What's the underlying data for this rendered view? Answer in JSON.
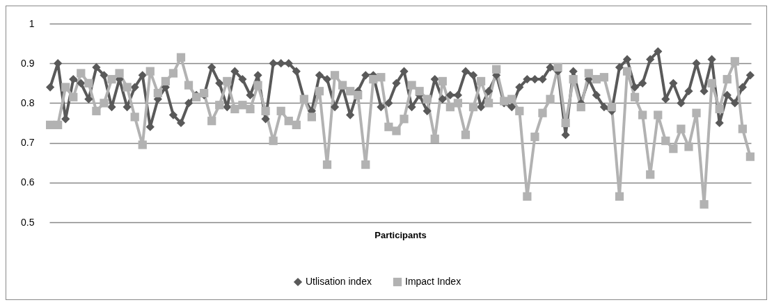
{
  "chart_data": {
    "type": "line",
    "xlabel": "Participants",
    "categories": [
      null,
      null,
      null,
      null,
      null,
      null,
      null,
      null,
      null,
      null,
      null,
      null,
      null,
      null,
      null,
      null,
      null,
      null,
      null,
      null,
      null,
      null,
      null,
      null,
      null,
      null,
      null,
      null,
      null,
      null,
      null,
      null,
      null,
      null,
      null,
      null,
      null,
      null,
      null,
      null,
      null,
      null,
      null,
      null,
      null,
      null,
      null,
      null,
      null,
      null,
      null,
      null,
      null,
      null,
      null,
      null,
      null,
      null,
      null,
      null,
      null,
      null,
      null,
      null,
      null,
      null,
      null,
      null,
      null,
      null,
      null,
      null,
      null,
      null,
      null,
      null,
      null,
      null,
      null,
      null,
      null,
      null,
      null,
      null,
      null,
      null,
      null,
      null,
      null,
      null,
      null,
      null
    ],
    "series": [
      {
        "name": "Utlisation index",
        "color": "#595959",
        "marker": "diamond",
        "values": [
          0.84,
          0.9,
          0.76,
          0.86,
          0.85,
          0.81,
          0.89,
          0.87,
          0.79,
          0.86,
          0.79,
          0.84,
          0.87,
          0.74,
          0.81,
          0.84,
          0.77,
          0.75,
          0.8,
          0.82,
          0.82,
          0.89,
          0.85,
          0.79,
          0.88,
          0.86,
          0.82,
          0.87,
          0.76,
          0.9,
          0.9,
          0.9,
          0.88,
          0.81,
          0.78,
          0.87,
          0.86,
          0.79,
          0.84,
          0.77,
          0.83,
          0.87,
          0.87,
          0.79,
          0.8,
          0.85,
          0.88,
          0.79,
          0.82,
          0.78,
          0.86,
          0.81,
          0.82,
          0.82,
          0.88,
          0.87,
          0.79,
          0.83,
          0.87,
          0.8,
          0.79,
          0.84,
          0.86,
          0.86,
          0.86,
          0.89,
          0.88,
          0.72,
          0.88,
          0.8,
          0.86,
          0.82,
          0.79,
          0.78,
          0.89,
          0.91,
          0.84,
          0.85,
          0.91,
          0.93,
          0.81,
          0.85,
          0.8,
          0.83,
          0.9,
          0.83,
          0.91,
          0.75,
          0.82,
          0.8,
          0.84,
          0.87
        ]
      },
      {
        "name": "Impact Index",
        "color": "#b2b2b2",
        "marker": "square",
        "values": [
          0.745,
          0.745,
          0.84,
          0.815,
          0.875,
          0.85,
          0.78,
          0.8,
          0.86,
          0.875,
          0.84,
          0.765,
          0.695,
          0.88,
          0.825,
          0.855,
          0.875,
          0.915,
          0.845,
          0.815,
          0.825,
          0.755,
          0.795,
          0.855,
          0.785,
          0.795,
          0.785,
          0.845,
          0.78,
          0.705,
          0.78,
          0.755,
          0.745,
          0.81,
          0.765,
          0.83,
          0.645,
          0.87,
          0.845,
          0.83,
          0.82,
          0.645,
          0.86,
          0.865,
          0.74,
          0.73,
          0.76,
          0.845,
          0.83,
          0.81,
          0.71,
          0.855,
          0.79,
          0.8,
          0.72,
          0.79,
          0.855,
          0.8,
          0.885,
          0.805,
          0.81,
          0.78,
          0.565,
          0.715,
          0.775,
          0.81,
          0.89,
          0.75,
          0.86,
          0.79,
          0.875,
          0.86,
          0.865,
          0.79,
          0.565,
          0.88,
          0.815,
          0.77,
          0.62,
          0.77,
          0.705,
          0.685,
          0.735,
          0.69,
          0.775,
          0.545,
          0.85,
          0.785,
          0.86,
          0.905,
          0.735,
          0.665
        ]
      }
    ],
    "ylim": [
      0.5,
      1
    ],
    "yticks": [
      0.5,
      0.6,
      0.7,
      0.8,
      0.9,
      1
    ],
    "grid": "y",
    "legend": "bottom",
    "line_style": "solid"
  }
}
